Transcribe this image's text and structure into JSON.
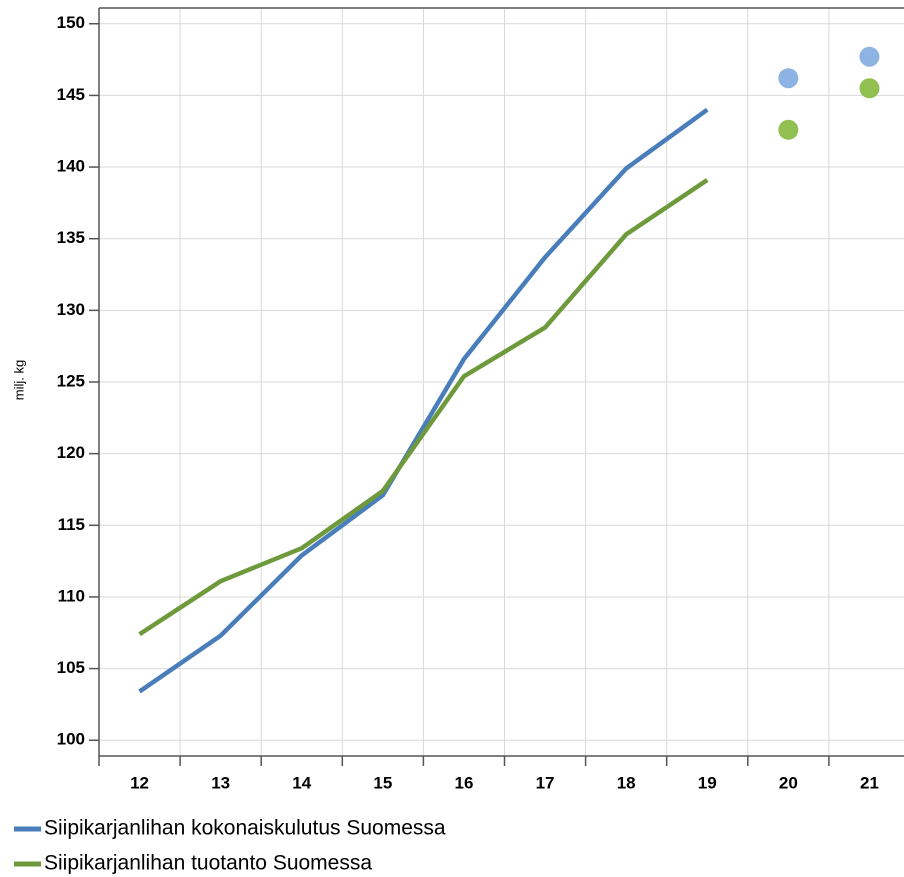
{
  "chart_data": {
    "type": "line",
    "y_label": "milj. kg",
    "categories": [
      "12",
      "13",
      "14",
      "15",
      "16",
      "17",
      "18",
      "19",
      "20",
      "21"
    ],
    "series": [
      {
        "name": "Siipikarjanlihan kokonaiskulutus Suomessa",
        "color": "#4a7ebb",
        "forecast_color": "#8db3e2",
        "values": [
          103.4,
          107.3,
          112.9,
          117.1,
          126.6,
          133.7,
          139.9,
          144.0,
          null,
          null
        ],
        "forecast_values": [
          null,
          null,
          null,
          null,
          null,
          null,
          null,
          null,
          146.2,
          147.7
        ]
      },
      {
        "name": "Siipikarjanlihan tuotanto Suomessa",
        "color": "#6e9a3c",
        "forecast_color": "#92c050",
        "values": [
          107.4,
          111.1,
          113.4,
          117.4,
          125.4,
          128.8,
          135.3,
          139.1,
          null,
          null
        ],
        "forecast_values": [
          null,
          null,
          null,
          null,
          null,
          null,
          null,
          null,
          142.6,
          145.5
        ]
      }
    ],
    "ylim": [
      98.9,
      151.1
    ],
    "yticks": [
      100,
      105,
      110,
      115,
      120,
      125,
      130,
      135,
      140,
      145,
      150
    ],
    "grid": true
  }
}
